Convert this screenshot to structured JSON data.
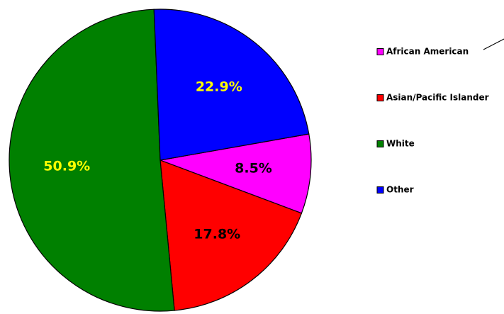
{
  "chart_data": {
    "type": "pie",
    "categories": [
      "African American",
      "Asian/Pacific Islander",
      "White",
      "Other"
    ],
    "values": [
      8.5,
      17.8,
      50.9,
      22.9
    ],
    "value_labels": [
      "8.5%",
      "17.8%",
      "50.9%",
      "22.9%"
    ],
    "colors": [
      "#ff00ff",
      "#ff0000",
      "#008000",
      "#0000ff"
    ],
    "label_colors": [
      "#000000",
      "#000000",
      "#ffff00",
      "#ffff00"
    ],
    "legend": "right"
  }
}
